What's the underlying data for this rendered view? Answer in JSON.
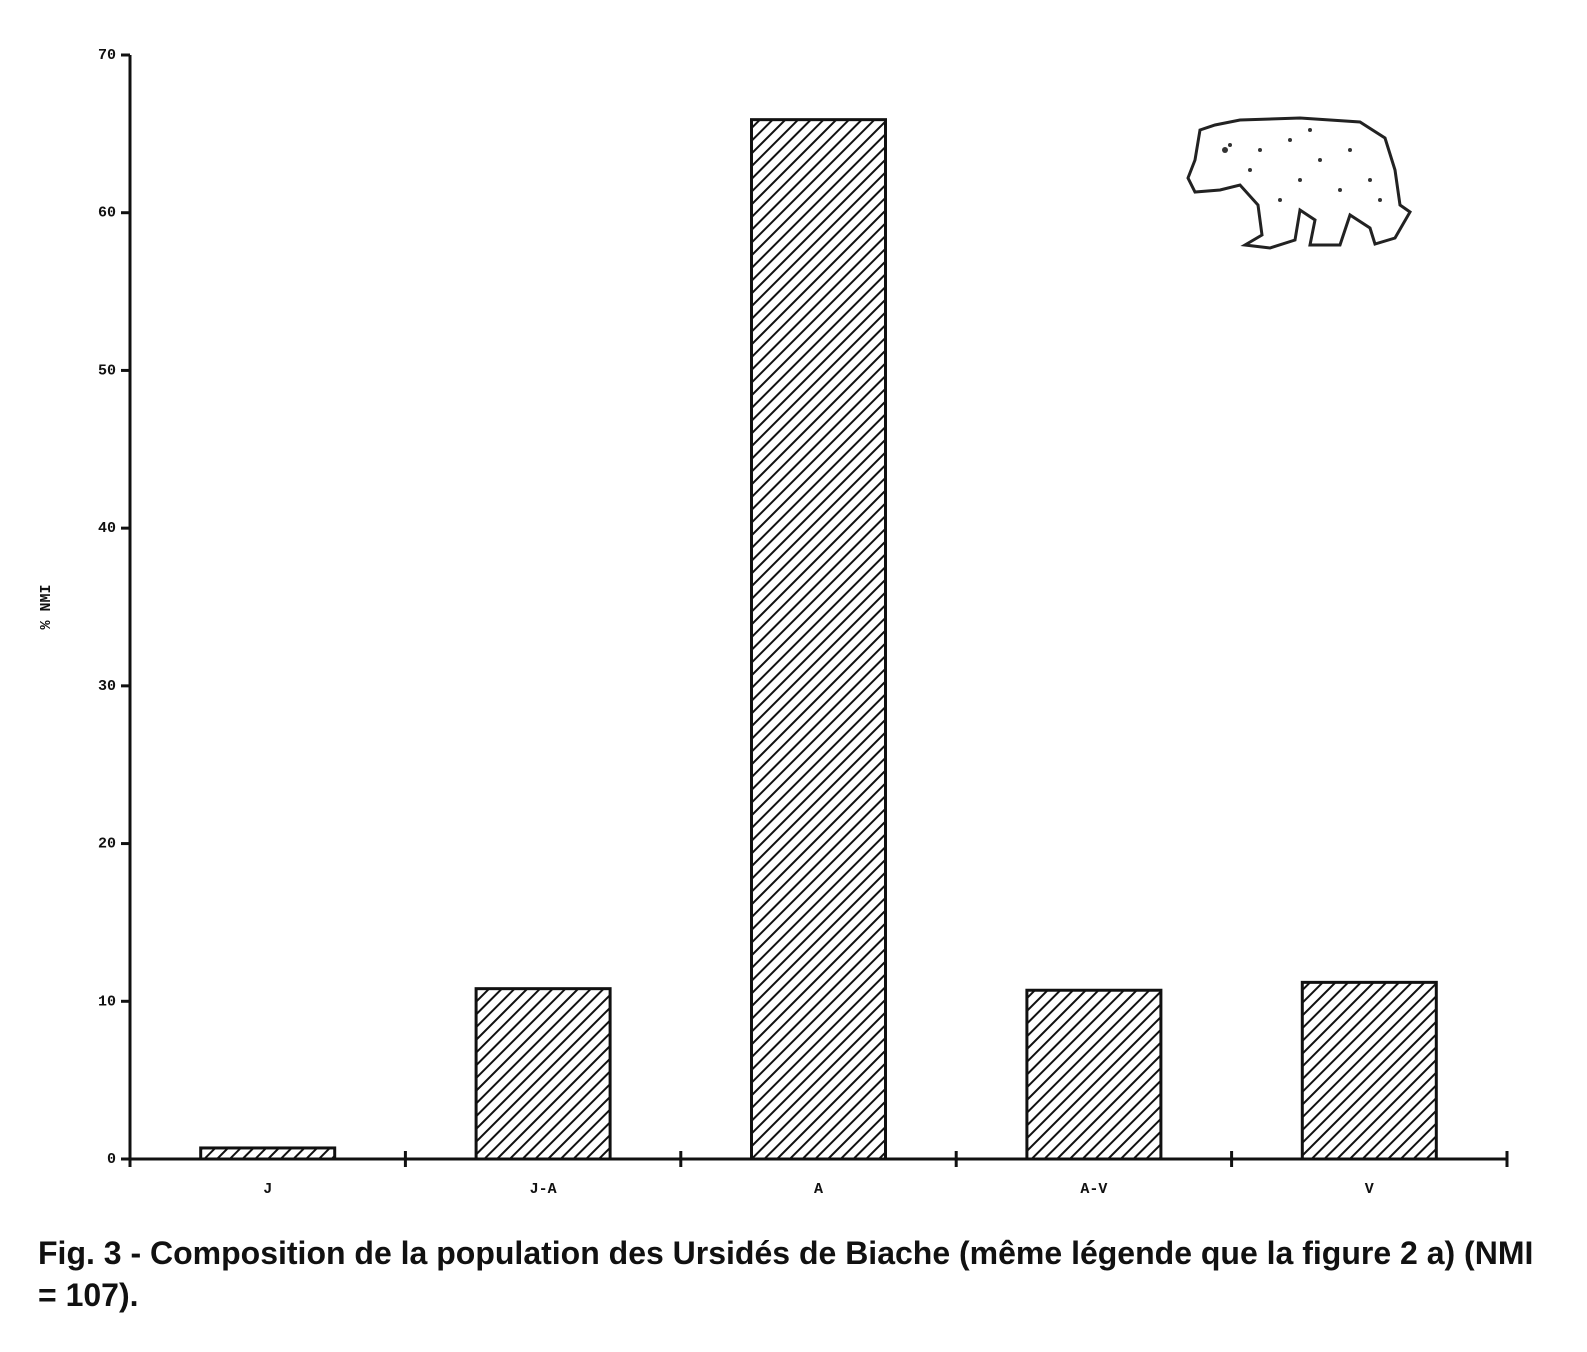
{
  "chart_data": {
    "type": "bar",
    "y_label": "% NMI",
    "categories": [
      "J",
      "J-A",
      "A",
      "A-V",
      "V"
    ],
    "values": [
      0.7,
      10.8,
      65.9,
      10.7,
      11.2
    ],
    "color": "#111111",
    "ylim": [
      0,
      70
    ],
    "yticks": [
      0,
      10,
      20,
      30,
      40,
      50,
      60,
      70
    ],
    "grid": false,
    "caption": "Fig. 3 - Composition de la population des Ursidés de Biache (même légende que la figure 2 a) (NMI = 107)."
  }
}
